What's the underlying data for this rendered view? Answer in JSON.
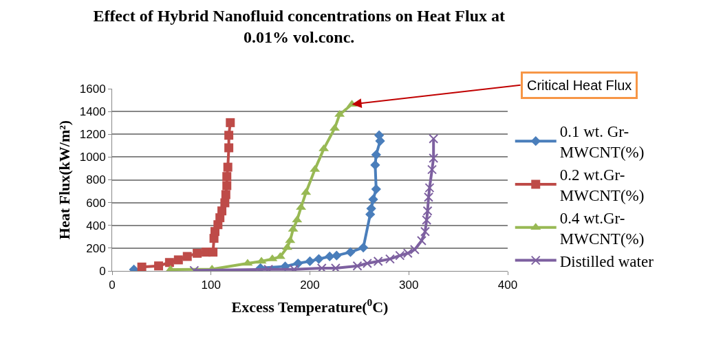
{
  "chart_data": {
    "type": "line",
    "title": "Effect of Hybrid Nanofluid concentrations on Heat Flux at 0.01% vol.conc.",
    "xlabel": "Excess Temperature($^{0}$C)",
    "ylabel": "Heat Flux(kW/m²)",
    "xlim": [
      0,
      400
    ],
    "xticks": [
      0,
      100,
      200,
      300,
      400
    ],
    "ylim": [
      0,
      1600
    ],
    "yticks": [
      0,
      200,
      400,
      600,
      800,
      1000,
      1200,
      1400,
      1600
    ],
    "grid": "y",
    "legend": "right",
    "annotations": [
      {
        "text": "Critical Heat Flux",
        "x": 242.5,
        "y": 1463
      }
    ],
    "series": [
      {
        "name": "0.1 wt. Gr-MWCNT(%)",
        "color": "#4a7ebb",
        "marker": "diamond",
        "x": [
          22,
          100,
          150,
          175,
          188,
          200,
          209,
          220,
          227,
          241,
          254,
          261,
          262,
          264,
          267,
          266,
          267,
          271,
          270
        ],
        "values": [
          12,
          null,
          25,
          40,
          66,
          85,
          105,
          127,
          135,
          165,
          205,
          497,
          548,
          628,
          718,
          930,
          1020,
          1141,
          1191
        ]
      },
      {
        "name": "0.2 wt.Gr-MWCNT(%)",
        "color": "#be4b48",
        "marker": "square",
        "x": [
          30,
          47,
          58,
          67,
          76,
          86,
          95,
          102,
          103,
          104,
          107,
          109,
          111,
          114,
          115,
          116,
          116,
          117,
          118,
          118,
          119.5
        ],
        "values": [
          34,
          44,
          74,
          97,
          127,
          155,
          165,
          165,
          286,
          346,
          406,
          467,
          527,
          598,
          670,
          749,
          829,
          911,
          1081,
          1191,
          1302
        ]
      },
      {
        "name": "0.4 wt.Gr-MWCNT(%)",
        "color": "#98b954",
        "marker": "triangle",
        "x": [
          59,
          101,
          137,
          151,
          162,
          170,
          177,
          180,
          183,
          187,
          191,
          196,
          205,
          214,
          225,
          230,
          242.5
        ],
        "values": [
          12,
          15,
          66,
          85,
          105,
          125,
          205,
          266,
          366,
          447,
          557,
          688,
          890,
          1071,
          1252,
          1373,
          1463
        ]
      },
      {
        "name": "Distilled water",
        "color": "#7d60a0",
        "marker": "cross",
        "x": [
          83,
          158,
          184,
          212,
          226,
          248,
          258,
          269,
          281,
          291,
          299,
          306,
          313,
          316.5,
          318,
          319,
          320,
          321,
          323.5,
          325,
          325
        ],
        "values": [
          4,
          14,
          14,
          24,
          24,
          44,
          66,
          85,
          105,
          135,
          155,
          187,
          266,
          346,
          447,
          527,
          648,
          730,
          890,
          990,
          1161
        ]
      }
    ]
  }
}
